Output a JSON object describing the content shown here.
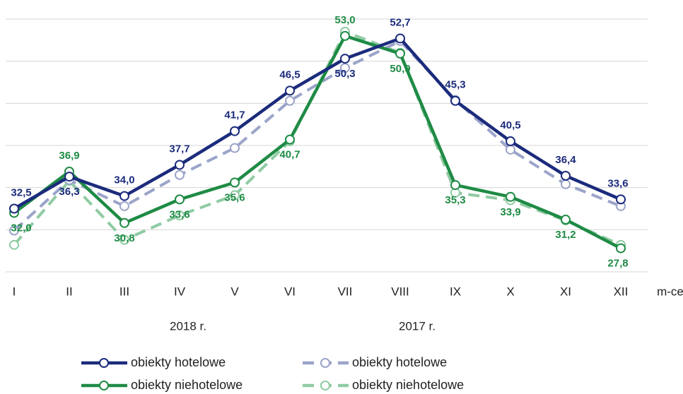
{
  "chart_data": {
    "type": "line",
    "categories": [
      "I",
      "II",
      "III",
      "IV",
      "V",
      "VI",
      "VII",
      "VIII",
      "IX",
      "X",
      "XI",
      "XII"
    ],
    "x_label": "m-ce",
    "groups": [
      "2018 r.",
      "2017 r."
    ],
    "ylim": [
      25,
      55
    ],
    "yticks": [
      25,
      30,
      35,
      40,
      45,
      50,
      55
    ],
    "grid": true,
    "series": [
      {
        "name": "obiekty hotelowe",
        "group": 0,
        "color": "#1b2b7c",
        "dashed": false,
        "values": [
          32.5,
          36.3,
          34.0,
          37.7,
          41.7,
          46.5,
          50.3,
          52.7,
          45.3,
          40.5,
          36.4,
          33.6
        ],
        "value_labels": [
          "32,5",
          "36,3",
          "34,0",
          "37,7",
          "41,7",
          "46,5",
          "50,3",
          "52,7",
          "45,3",
          "40,5",
          "36,4",
          "33,6"
        ]
      },
      {
        "name": "obiekty hotelowe",
        "group": 1,
        "color": "#9ba4c9",
        "dashed": true,
        "values": [
          29.9,
          35.9,
          32.8,
          36.5,
          39.7,
          45.3,
          49.2,
          52.4,
          45.4,
          39.5,
          35.4,
          32.8
        ]
      },
      {
        "name": "obiekty niehotelowe",
        "group": 0,
        "color": "#1f8b45",
        "dashed": false,
        "values": [
          32.0,
          36.9,
          30.8,
          33.6,
          35.6,
          40.7,
          53.0,
          50.9,
          35.3,
          33.9,
          31.2,
          27.8
        ],
        "value_labels": [
          "32,0",
          "36,9",
          "30,8",
          "33,6",
          "35,6",
          "40,7",
          "53,0",
          "50,9",
          "35,3",
          "33,9",
          "31,2",
          "27,8"
        ]
      },
      {
        "name": "obiekty niehotelowe",
        "group": 1,
        "color": "#8fcba3",
        "dashed": true,
        "values": [
          28.2,
          35.8,
          28.8,
          31.7,
          34.1,
          40.5,
          53.5,
          51.0,
          34.4,
          33.5,
          31.1,
          28.2
        ]
      }
    ]
  }
}
